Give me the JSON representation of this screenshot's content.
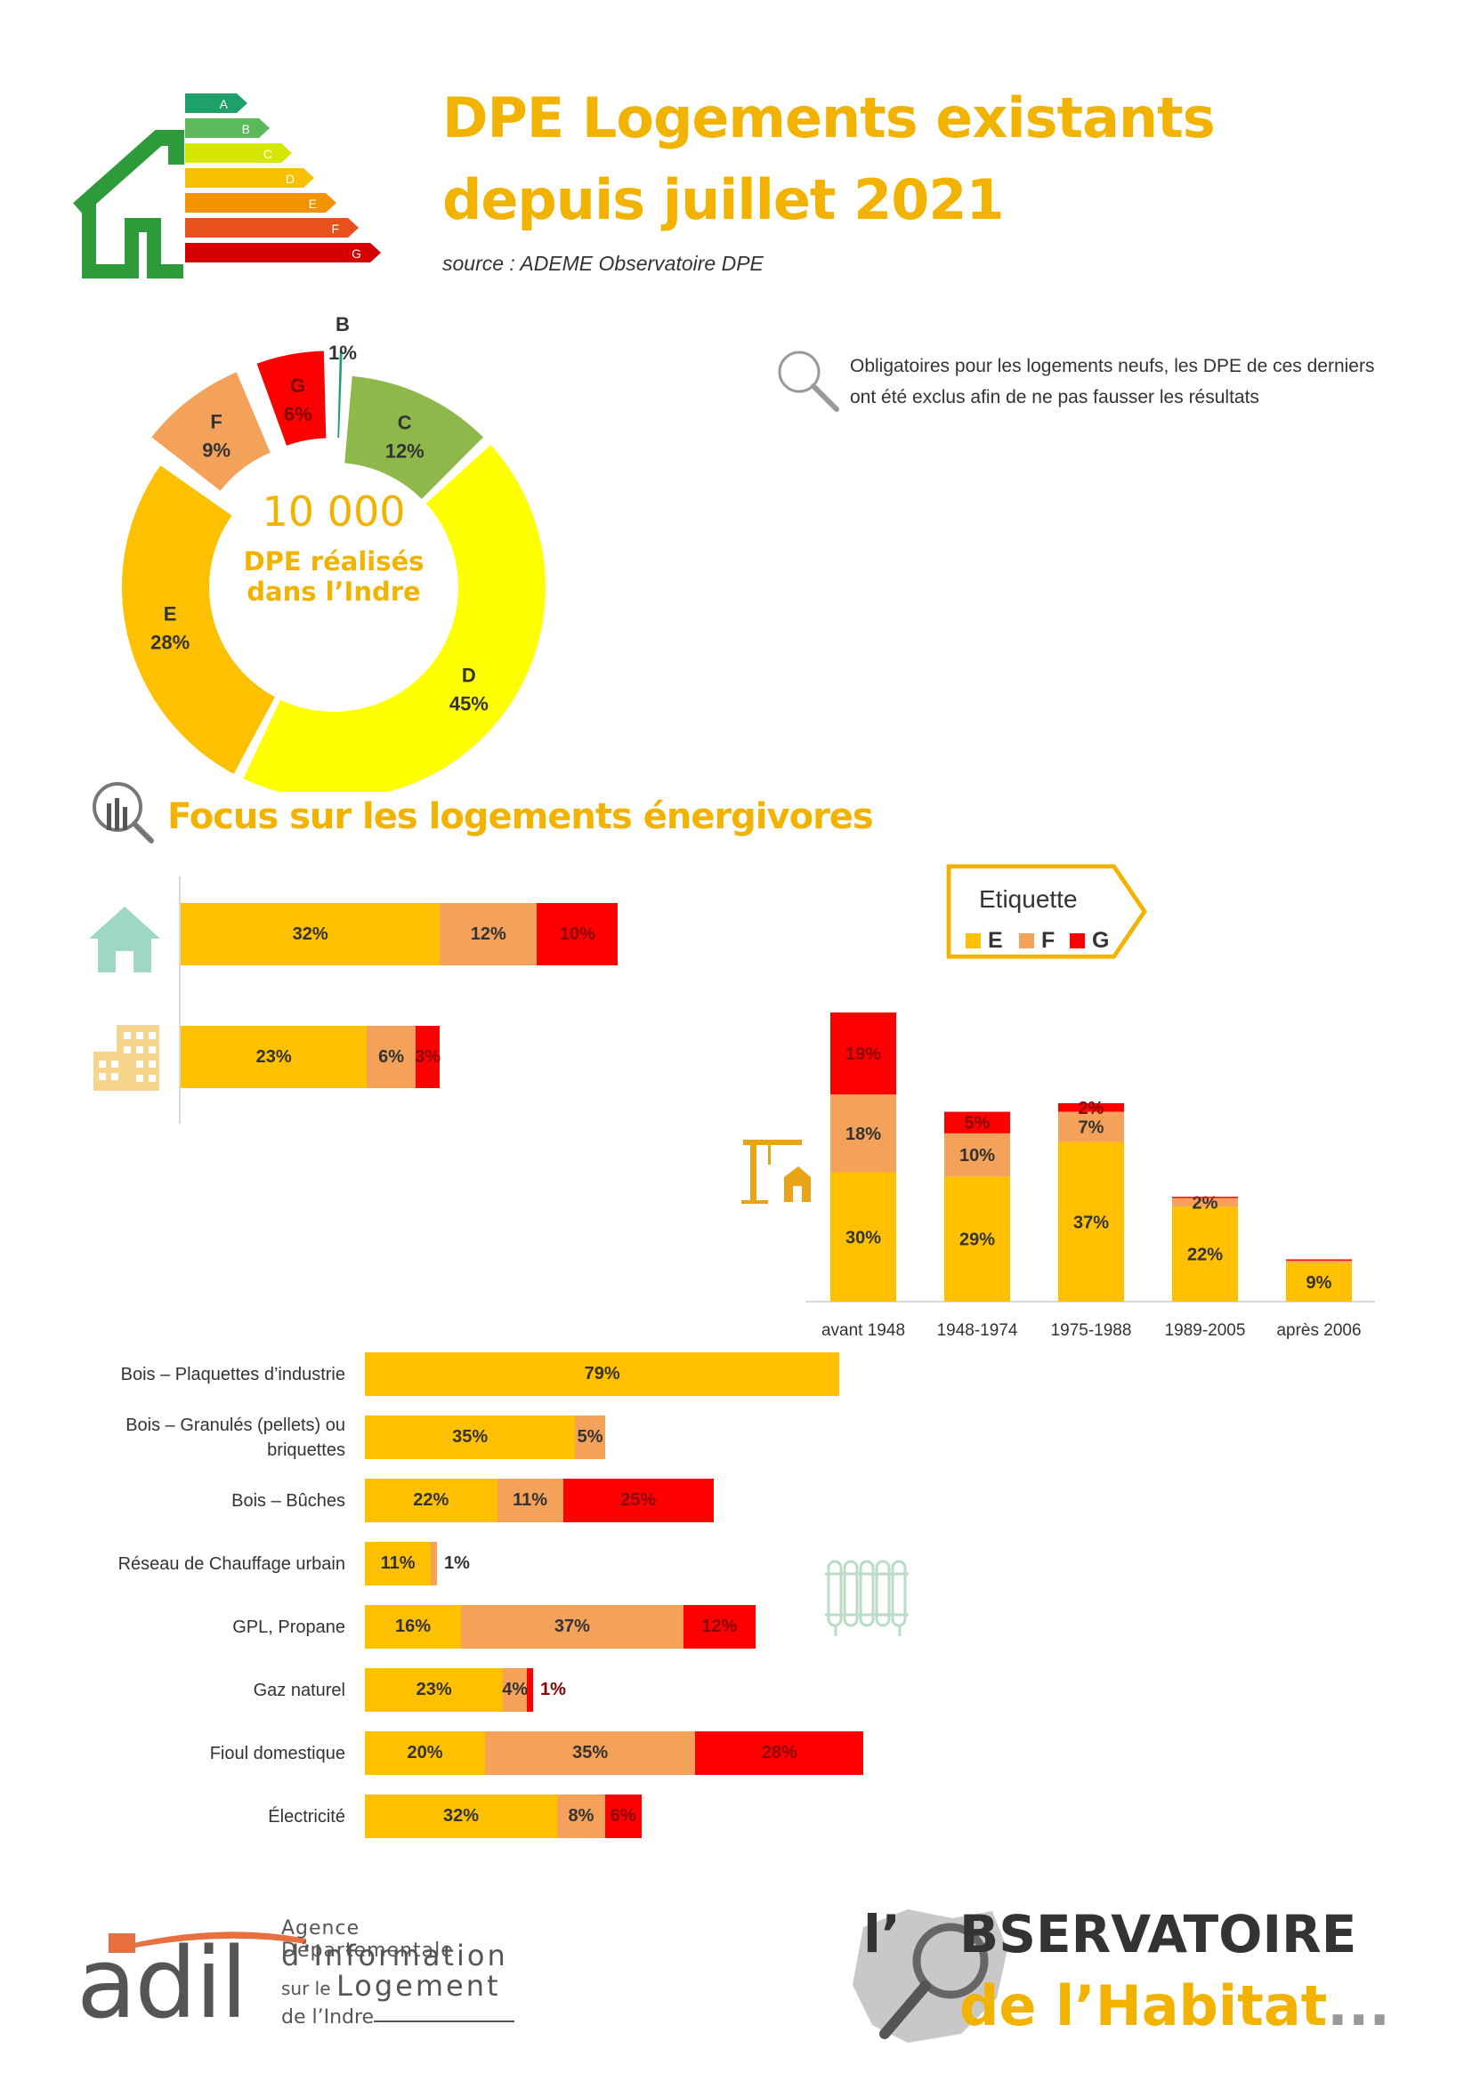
{
  "header": {
    "title_line1": "DPE Logements existants",
    "title_line2": "depuis juillet 2021",
    "source": "source : ADEME Observatoire DPE"
  },
  "energy_label_letters": [
    "A",
    "B",
    "C",
    "D",
    "E",
    "F",
    "G"
  ],
  "note": "Obligatoires pour les logements neufs, les DPE de ces derniers ont été exclus afin de ne pas fausser les résultats",
  "donut_center": {
    "count": "10 000",
    "line1": "DPE réalisés",
    "line2": "dans l’Indre"
  },
  "focus_title": "Focus sur les logements énergivores",
  "legend": {
    "title": "Etiquette",
    "items": [
      "E",
      "F",
      "G"
    ]
  },
  "colors": {
    "B": "#1ea06a",
    "C": "#8fb84a",
    "D": "#ffff00",
    "E": "#ffc000",
    "F": "#f4a15a",
    "G": "#ff0000",
    "accent": "#f2b300"
  },
  "chart_data": [
    {
      "type": "pie",
      "name": "donut",
      "center_text": "10 000 DPE réalisés dans l’Indre",
      "categories": [
        "B",
        "C",
        "D",
        "E",
        "F",
        "G"
      ],
      "values": [
        1,
        12,
        45,
        28,
        9,
        6
      ],
      "labels": [
        "1%",
        "12%",
        "45%",
        "28%",
        "9%",
        "6%"
      ]
    },
    {
      "type": "bar",
      "name": "housing-type",
      "orientation": "horizontal",
      "stacked": true,
      "categories": [
        "maison",
        "appartement"
      ],
      "series": [
        {
          "name": "E",
          "values": [
            32,
            23
          ]
        },
        {
          "name": "F",
          "values": [
            12,
            6
          ]
        },
        {
          "name": "G",
          "values": [
            10,
            3
          ]
        }
      ],
      "labels": [
        [
          "32%",
          "12%",
          "10%"
        ],
        [
          "23%",
          "6%",
          "3%"
        ]
      ]
    },
    {
      "type": "bar",
      "name": "construction-period",
      "orientation": "vertical",
      "stacked": true,
      "categories": [
        "avant 1948",
        "1948-1974",
        "1975-1988",
        "1989-2005",
        "après 2006"
      ],
      "series": [
        {
          "name": "E",
          "values": [
            30,
            29,
            37,
            22,
            9
          ]
        },
        {
          "name": "F",
          "values": [
            18,
            10,
            7,
            2,
            0.5
          ]
        },
        {
          "name": "G",
          "values": [
            19,
            5,
            2,
            0.3,
            0.3
          ]
        }
      ],
      "labels": [
        [
          "30%",
          "18%",
          "19%"
        ],
        [
          "29%",
          "10%",
          "5%"
        ],
        [
          "37%",
          "7%",
          "2%"
        ],
        [
          "22%",
          "2%",
          ""
        ],
        [
          "9%",
          "",
          ""
        ]
      ]
    },
    {
      "type": "bar",
      "name": "heating-energy",
      "orientation": "horizontal",
      "stacked": true,
      "categories": [
        "Bois – Plaquettes d’industrie",
        "Bois – Granulés (pellets) ou briquettes",
        "Bois – Bûches",
        "Réseau de Chauffage urbain",
        "GPL, Propane",
        "Gaz naturel",
        "Fioul domestique",
        "Électricité"
      ],
      "series": [
        {
          "name": "E",
          "values": [
            79,
            35,
            22,
            11,
            16,
            23,
            20,
            32
          ]
        },
        {
          "name": "F",
          "values": [
            0,
            5,
            11,
            1,
            37,
            4,
            35,
            8
          ]
        },
        {
          "name": "G",
          "values": [
            0,
            0,
            25,
            0,
            12,
            1,
            28,
            6
          ]
        }
      ],
      "labels": [
        [
          "79%",
          "",
          ""
        ],
        [
          "35%",
          "5%",
          ""
        ],
        [
          "22%",
          "11%",
          "25%"
        ],
        [
          "11%",
          "1%",
          ""
        ],
        [
          "16%",
          "37%",
          "12%"
        ],
        [
          "23%",
          "4%",
          "1%"
        ],
        [
          "20%",
          "35%",
          "28%"
        ],
        [
          "32%",
          "8%",
          "6%"
        ]
      ]
    }
  ],
  "footer": {
    "adil_logo": "adil",
    "adil_line1": "Agence Départementale",
    "adil_line2": "d’Information",
    "adil_line3a": "sur le",
    "adil_line3b": "Logement",
    "adil_line4": "de l’Indre",
    "obs_line1a": "l’",
    "obs_line1b": "BSERVATOIRE",
    "obs_line2": "de l’Habitat",
    "obs_dots": "..."
  }
}
